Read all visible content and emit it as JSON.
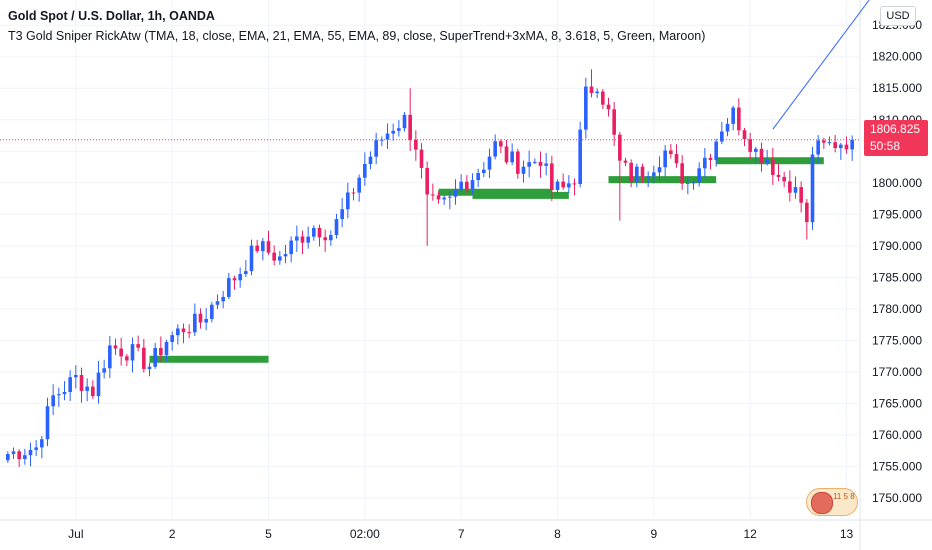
{
  "header": {
    "line1": "Gold Spot / U.S. Dollar, 1h, OANDA",
    "line2": "T3 Gold Sniper RickAtw (TMA, 18, close, EMA, 21, EMA, 55, EMA, 89, close, SuperTrend+3xMA, 8, 3.618, 5, Green, Maroon)"
  },
  "currency_button": "USD",
  "last_price": {
    "price": "1806.825",
    "countdown": "50:58"
  },
  "colors": {
    "up": "#2962ff",
    "down": "#e91e63",
    "zone": "#2e9e3a",
    "price_line": "#f23659",
    "trend_line": "#2962ff",
    "grid": "#f0f3fa",
    "axis_text": "#131722"
  },
  "flag_text": "11 5 8",
  "chart_data": {
    "type": "candlestick",
    "ylim": [
      1746.5,
      1829
    ],
    "y_ticks": [
      1750,
      1755,
      1760,
      1765,
      1770,
      1775,
      1780,
      1785,
      1790,
      1795,
      1800,
      1805,
      1810,
      1815,
      1820,
      1825
    ],
    "y_tick_labels": [
      "1750.000",
      "1755.000",
      "1760.000",
      "1765.000",
      "1770.000",
      "1775.000",
      "1780.000",
      "1785.000",
      "1790.000",
      "1795.000",
      "1800.000",
      "1805.000",
      "1810.000",
      "1815.000",
      "1820.000",
      "1825.000"
    ],
    "x_labels": [
      {
        "label": "Jul",
        "bar": 12
      },
      {
        "label": "2",
        "bar": 29
      },
      {
        "label": "5",
        "bar": 46
      },
      {
        "label": "02:00",
        "bar": 63
      },
      {
        "label": "7",
        "bar": 80
      },
      {
        "label": "8",
        "bar": 97
      },
      {
        "label": "9",
        "bar": 114
      },
      {
        "label": "12",
        "bar": 131
      },
      {
        "label": "13",
        "bar": 148
      }
    ],
    "bars": 150,
    "last_price": 1806.825,
    "anchors": [
      [
        0,
        1757
      ],
      [
        5,
        1758
      ],
      [
        8,
        1766
      ],
      [
        12,
        1769
      ],
      [
        15,
        1767
      ],
      [
        18,
        1774
      ],
      [
        22,
        1773
      ],
      [
        25,
        1771
      ],
      [
        28,
        1775
      ],
      [
        31,
        1777
      ],
      [
        34,
        1778
      ],
      [
        38,
        1783
      ],
      [
        41,
        1786
      ],
      [
        44,
        1790
      ],
      [
        48,
        1788
      ],
      [
        51,
        1791
      ],
      [
        54,
        1793
      ],
      [
        57,
        1792
      ],
      [
        60,
        1797
      ],
      [
        63,
        1803
      ],
      [
        66,
        1807
      ],
      [
        68,
        1809
      ],
      [
        70,
        1810
      ],
      [
        72,
        1806
      ],
      [
        74,
        1797
      ],
      [
        76,
        1796
      ],
      [
        78,
        1797
      ],
      [
        80,
        1800
      ],
      [
        82,
        1801
      ],
      [
        84,
        1803
      ],
      [
        86,
        1806
      ],
      [
        88,
        1804
      ],
      [
        90,
        1803
      ],
      [
        92,
        1803
      ],
      [
        94,
        1804
      ],
      [
        96,
        1799
      ],
      [
        98,
        1799
      ],
      [
        100,
        1801
      ],
      [
        102,
        1814
      ],
      [
        104,
        1816
      ],
      [
        106,
        1811
      ],
      [
        108,
        1803
      ],
      [
        110,
        1801
      ],
      [
        112,
        1802
      ],
      [
        114,
        1803
      ],
      [
        116,
        1805
      ],
      [
        118,
        1802
      ],
      [
        120,
        1800
      ],
      [
        122,
        1803
      ],
      [
        124,
        1805
      ],
      [
        126,
        1809
      ],
      [
        128,
        1811
      ],
      [
        130,
        1808
      ],
      [
        132,
        1805
      ],
      [
        134,
        1804
      ],
      [
        136,
        1801
      ],
      [
        138,
        1800
      ],
      [
        140,
        1797
      ],
      [
        141,
        1793
      ],
      [
        142,
        1805
      ],
      [
        145,
        1806
      ],
      [
        147,
        1806.5
      ],
      [
        149,
        1806.8
      ]
    ],
    "spikes": [
      {
        "bar": 71,
        "high": 1815
      },
      {
        "bar": 74,
        "low": 1790
      },
      {
        "bar": 103,
        "high": 1818
      },
      {
        "bar": 108,
        "low": 1794
      },
      {
        "bar": 141,
        "low": 1791
      }
    ],
    "zones": [
      {
        "from_bar": 25,
        "to_bar": 46,
        "price": 1772
      },
      {
        "from_bar": 76,
        "to_bar": 96,
        "price": 1798.5
      },
      {
        "from_bar": 82,
        "to_bar": 99,
        "price": 1798
      },
      {
        "from_bar": 106,
        "to_bar": 125,
        "price": 1800.5
      },
      {
        "from_bar": 125,
        "to_bar": 144,
        "price": 1803.5
      }
    ],
    "trend_line": {
      "from_bar": 135,
      "from_price": 1808.5,
      "to_bar": 152,
      "to_price": 1829
    }
  }
}
